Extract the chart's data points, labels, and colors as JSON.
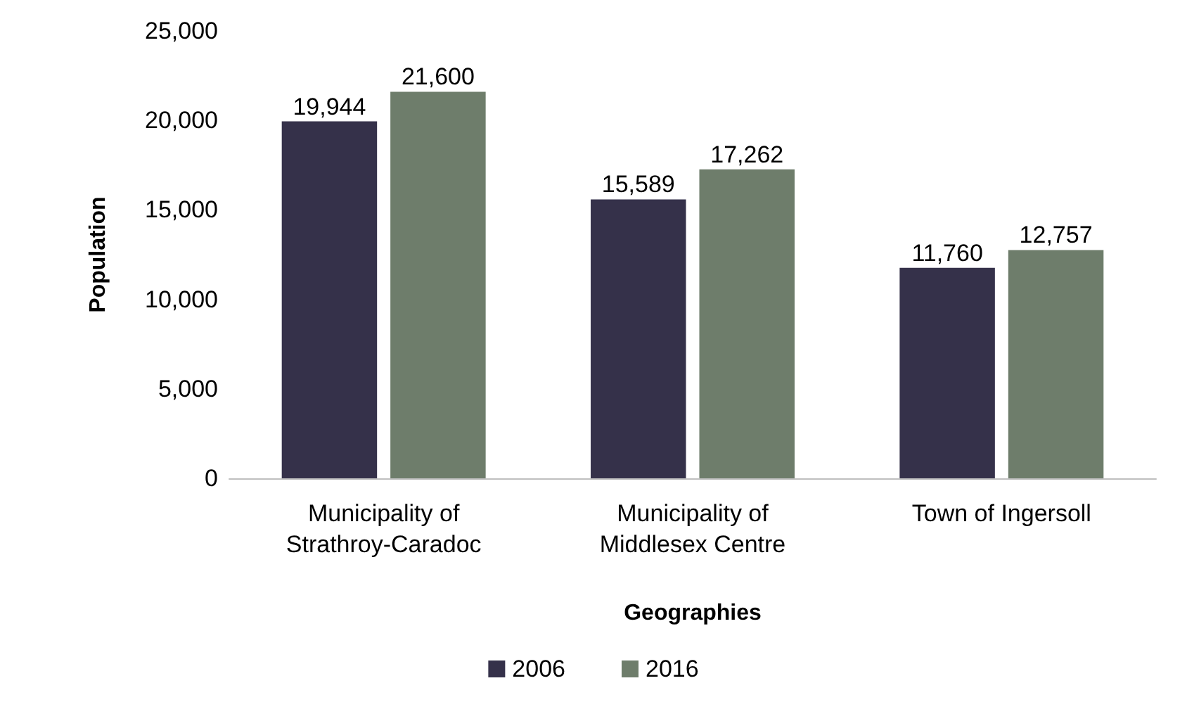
{
  "chart_data": {
    "type": "bar",
    "xlabel": "Geographies",
    "ylabel": "Population",
    "categories": [
      "Municipality of\nStrathroy-Caradoc",
      "Municipality of\nMiddlesex Centre",
      "Town of Ingersoll"
    ],
    "series": [
      {
        "name": "2006",
        "color": "#35314a",
        "values": [
          19944,
          15589,
          11760
        ],
        "value_labels": [
          "19,944",
          "15,589",
          "11,760"
        ]
      },
      {
        "name": "2016",
        "color": "#6e7d6b",
        "values": [
          21600,
          17262,
          12757
        ],
        "value_labels": [
          "21,600",
          "17,262",
          "12,757"
        ]
      }
    ],
    "ylim": [
      0,
      25000
    ],
    "yticks": [
      0,
      {
        "value": 5000,
        "label": "5,000"
      },
      {
        "value": 10000,
        "label": "10,000"
      },
      {
        "value": 15000,
        "label": "15,000"
      },
      {
        "value": 20000,
        "label": "20,000"
      },
      {
        "value": 25000,
        "label": "25,000"
      }
    ],
    "grid": false,
    "legend": "bottom"
  }
}
